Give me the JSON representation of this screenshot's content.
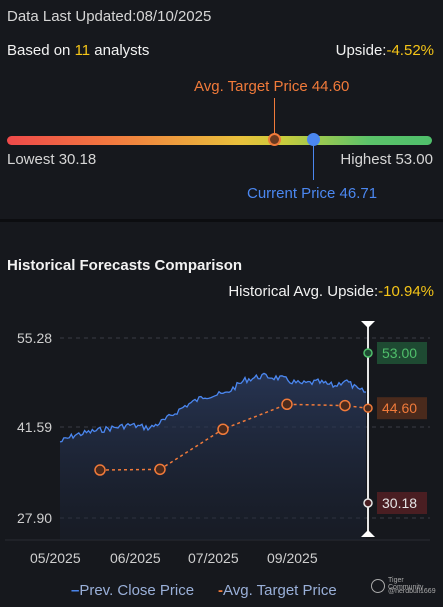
{
  "header": {
    "data_last_updated": "Data Last Updated:08/10/2025",
    "based_on_prefix": "Based on ",
    "analyst_count": "11",
    "based_on_suffix": " analysts",
    "upside_label": "Upside:",
    "upside_value": "-4.52%"
  },
  "price_range": {
    "avg_target_label": "Avg. Target Price 44.60",
    "lowest_label": "Lowest 30.18",
    "highest_label": "Highest 53.00",
    "current_label": "Current Price 46.71",
    "lowest": 30.18,
    "highest": 53.0,
    "avg_target": 44.6,
    "current": 46.71
  },
  "historical": {
    "title": "Historical Forecasts Comparison",
    "avg_upside_label": "Historical Avg. Upside:",
    "avg_upside_value": "-10.94%"
  },
  "chart_data": {
    "type": "line",
    "yticks": [
      "55.28",
      "41.59",
      "27.90"
    ],
    "xticks": [
      "05/2025",
      "06/2025",
      "07/2025",
      "09/2025"
    ],
    "ylim": [
      27.9,
      55.28
    ],
    "series": [
      {
        "name": "Prev. Close Price",
        "color": "#4b87f0"
      },
      {
        "name": "Avg. Target Price",
        "color": "#f07a3a",
        "values": [
          35.2,
          35.3,
          41.4,
          45.2,
          45.0,
          44.6
        ]
      }
    ],
    "markers": [
      {
        "label": "53.00",
        "value": 53.0,
        "color": "#4fbf6b",
        "bg": "#1e4a32"
      },
      {
        "label": "44.60",
        "value": 44.6,
        "color": "#f07a3a",
        "bg": "#4a2a1c"
      },
      {
        "label": "30.18",
        "value": 30.18,
        "color": "#e6e6e6",
        "bg": "#4a1e22"
      }
    ]
  },
  "legend": {
    "prev_close": "Prev. Close Price",
    "avg_target": "Avg. Target Price"
  },
  "watermark": {
    "line1": "Tiger Community",
    "line2": "@nerdbull1669"
  }
}
